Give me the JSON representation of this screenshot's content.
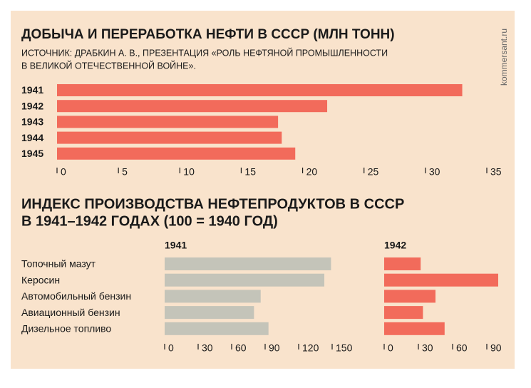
{
  "source": "kommersant.ru",
  "chart_data": [
    {
      "type": "hbar",
      "title": "ДОБЫЧА И ПЕРЕРАБОТКА НЕФТИ В СССР (МЛН ТОНН)",
      "subtitle": [
        "ИСТОЧНИК: ДРАБКИН А. В., ПРЕЗЕНТАЦИЯ «РОЛЬ НЕФТЯНОЙ ПРОМЫШЛЕННОСТИ",
        "В ВЕЛИКОЙ ОТЕЧЕСТВЕННОЙ ВОЙНЕ»."
      ],
      "categories": [
        "1941",
        "1942",
        "1943",
        "1944",
        "1945"
      ],
      "values": [
        33,
        22,
        18,
        18.3,
        19.4
      ],
      "color": "#f26b5b",
      "xlim": [
        0,
        35
      ],
      "xticks": [
        0,
        5,
        10,
        15,
        20,
        25,
        30,
        35
      ]
    },
    {
      "type": "hbar",
      "title": [
        "ИНДЕКС ПРОИЗВОДСТВА НЕФТЕПРОДУКТОВ В СССР",
        "В 1941–1942 ГОДАХ (100 = 1940 ГОД)"
      ],
      "label": "1941",
      "categories": [
        "Топочный мазут",
        "Керосин",
        "Автомобильный бензин",
        "Авиационный бензин",
        "Дизельное топливо"
      ],
      "values": [
        149,
        143,
        86,
        80,
        93
      ],
      "color": "#c4c4b9",
      "xlim": [
        0,
        150
      ],
      "xticks": [
        0,
        30,
        60,
        90,
        120,
        150
      ]
    },
    {
      "type": "hbar",
      "label": "1942",
      "values": [
        32,
        100,
        45,
        34,
        53
      ],
      "color": "#f26b5b",
      "xlim": [
        0,
        100
      ],
      "xticks": [
        0,
        30,
        60,
        90
      ]
    }
  ]
}
